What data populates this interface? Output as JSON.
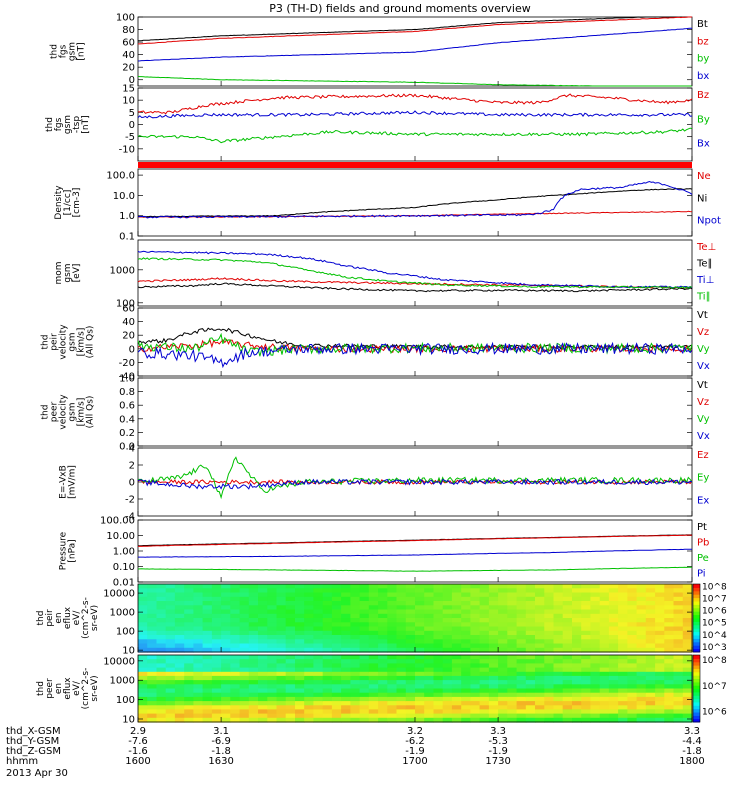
{
  "chart_data": {
    "type": "line",
    "title": "P3 (TH-D) fields and ground moments overview",
    "date_label": "2013 Apr 30",
    "x": {
      "ticks": [
        "1600",
        "1630",
        "1700",
        "1730",
        "1800"
      ],
      "range": [
        "1600",
        "1800"
      ]
    },
    "ephemeris": [
      {
        "label": "thd_X-GSM",
        "values": [
          "2.9",
          "3.1",
          "3.2",
          "3.3",
          "3.3"
        ]
      },
      {
        "label": "thd_Y-GSM",
        "values": [
          "-7.6",
          "-6.9",
          "-6.2",
          "-5.3",
          "-4.4"
        ]
      },
      {
        "label": "thd_Z-GSM",
        "values": [
          "-1.6",
          "-1.8",
          "-1.9",
          "-1.9",
          "-1.8"
        ]
      },
      {
        "label": "hhmm",
        "values": [
          "1600",
          "1630",
          "1700",
          "1730",
          "1800"
        ]
      }
    ],
    "panels": [
      {
        "ylabel": [
          "thd",
          "fgs",
          "gsm",
          "[nT]"
        ],
        "yscale": "linear",
        "ylim": [
          -10,
          100
        ],
        "ticks": [
          "0",
          "20",
          "40",
          "60",
          "80",
          "100"
        ],
        "legend": [
          "Bt",
          "bz",
          "by",
          "bx"
        ],
        "series": [
          {
            "name": "Bt",
            "color": "#000000",
            "noise": 0.3,
            "x": [
              1600,
              1630,
              1700,
              1730,
              1800
            ],
            "y": [
              62,
              70,
              80,
              91,
              103
            ]
          },
          {
            "name": "bz",
            "color": "#e00000",
            "noise": 0.3,
            "x": [
              1600,
              1630,
              1700,
              1730,
              1800
            ],
            "y": [
              57,
              66,
              77,
              88,
              100
            ]
          },
          {
            "name": "by",
            "color": "#0000d0",
            "noise": 0.3,
            "x": [
              1600,
              1630,
              1700,
              1730,
              1800
            ],
            "y": [
              30,
              36,
              44,
              59,
              82
            ]
          },
          {
            "name": "bx",
            "color": "#00c000",
            "noise": 0.3,
            "x": [
              1600,
              1630,
              1700,
              1730,
              1800
            ],
            "y": [
              5,
              0,
              -4,
              -8,
              -12
            ]
          }
        ]
      },
      {
        "ylabel": [
          "thd",
          "fgs",
          "gsm",
          "-tsp",
          "[nT]"
        ],
        "yscale": "linear",
        "ylim": [
          -15,
          15
        ],
        "ticks": [
          "-10",
          "-5",
          "0",
          "5",
          "10",
          "15"
        ],
        "legend": [
          "Bz",
          "By",
          "Bx"
        ],
        "series": [
          {
            "name": "Bz",
            "color": "#e00000",
            "noise": 0.6,
            "x": [
              1600,
              1612,
              1625,
              1650,
              1700,
              1730,
              1745,
              1755,
              1770,
              1790,
              1800
            ],
            "y": [
              5,
              5,
              8,
              11,
              12,
              9,
              9,
              12,
              11,
              9,
              10
            ]
          },
          {
            "name": "By",
            "color": "#0000d0",
            "noise": 0.6,
            "x": [
              1600,
              1625,
              1660,
              1700,
              1730,
              1760,
              1800
            ],
            "y": [
              3,
              4,
              4,
              5,
              4,
              4,
              4
            ]
          },
          {
            "name": "Bx",
            "color": "#00c000",
            "noise": 0.6,
            "x": [
              1600,
              1620,
              1630,
              1650,
              1670,
              1700,
              1720,
              1760,
              1790,
              1800
            ],
            "y": [
              -5,
              -5,
              -7,
              -5,
              -3,
              -4,
              -4,
              -4,
              -3,
              -2
            ]
          }
        ]
      },
      {
        "ylabel": [
          "Density",
          "[1/cc]",
          "[cm-3]"
        ],
        "yscale": "log",
        "ylim": [
          0.1,
          200
        ],
        "ticks": [
          "0.1",
          "1.0",
          "10.0",
          "100.0"
        ],
        "legend": [
          "Ne",
          "Ni",
          "Npot"
        ],
        "series": [
          {
            "name": "Ne",
            "color": "#e00000",
            "noise": 0.02,
            "x": [
              1600,
              1650,
              1700,
              1750,
              1800
            ],
            "y": [
              0.85,
              0.9,
              1.0,
              1.3,
              1.6
            ]
          },
          {
            "name": "Ni",
            "color": "#000000",
            "noise": 0.02,
            "x": [
              1600,
              1650,
              1700,
              1730,
              1760,
              1780,
              1790,
              1800
            ],
            "y": [
              0.9,
              1.0,
              2.5,
              6,
              12,
              18,
              20,
              21
            ]
          },
          {
            "name": "Npot",
            "color": "#0000d0",
            "noise": 0.05,
            "x": [
              1600,
              1650,
              1700,
              1740,
              1745,
              1750,
              1760,
              1775,
              1785,
              1790,
              1795,
              1800
            ],
            "y": [
              0.85,
              0.9,
              1.0,
              1.1,
              1.3,
              2,
              20,
              25,
              45,
              35,
              20,
              12
            ]
          }
        ]
      },
      {
        "ylabel": [
          "mom",
          "gsm",
          "[eV]"
        ],
        "yscale": "log",
        "ylim": [
          80,
          8000
        ],
        "ticks": [
          "100",
          "1000"
        ],
        "legend": [
          "Te⊥",
          "Te∥",
          "Ti⊥",
          "Ti∥"
        ],
        "series": [
          {
            "name": "Te⊥",
            "color": "#e00000",
            "noise": 0.03,
            "x": [
              1600,
              1620,
              1630,
              1650,
              1670,
              1700,
              1730,
              1760,
              1800
            ],
            "y": [
              450,
              500,
              550,
              460,
              420,
              380,
              350,
              320,
              280
            ]
          },
          {
            "name": "Te∥",
            "color": "#000000",
            "noise": 0.03,
            "x": [
              1600,
              1620,
              1630,
              1650,
              1670,
              1700,
              1730,
              1760,
              1800
            ],
            "y": [
              300,
              330,
              380,
              320,
              270,
              230,
              240,
              230,
              270
            ]
          },
          {
            "name": "Ti⊥",
            "color": "#0000d0",
            "noise": 0.03,
            "x": [
              1600,
              1615,
              1630,
              1645,
              1660,
              1675,
              1690,
              1710,
              1740,
              1770,
              1800
            ],
            "y": [
              3500,
              3400,
              3200,
              3000,
              2300,
              1300,
              800,
              500,
              360,
              310,
              300
            ]
          },
          {
            "name": "Ti∥",
            "color": "#00c000",
            "noise": 0.03,
            "x": [
              1600,
              1615,
              1630,
              1645,
              1660,
              1675,
              1690,
              1710,
              1740,
              1770,
              1800
            ],
            "y": [
              2200,
              2100,
              2000,
              1700,
              1000,
              600,
              450,
              350,
              310,
              300,
              290
            ]
          }
        ]
      },
      {
        "ylabel": [
          "thd",
          "peir",
          "velocity",
          "gsm",
          "[km/s]",
          "(All Qs)"
        ],
        "yscale": "linear",
        "ylim": [
          -40,
          60
        ],
        "ticks": [
          "-40",
          "-20",
          "0",
          "20",
          "40",
          "60"
        ],
        "legend": [
          "Vt",
          "Vz",
          "Vy",
          "Vx"
        ],
        "series": [
          {
            "name": "Vt",
            "color": "#000000",
            "noise": 3,
            "x": [
              1600,
              1610,
              1620,
              1630,
              1640,
              1650,
              1660,
              1700,
              1800
            ],
            "y": [
              10,
              12,
              25,
              30,
              20,
              10,
              5,
              3,
              3
            ]
          },
          {
            "name": "Vz",
            "color": "#e00000",
            "noise": 5,
            "x": [
              1600,
              1620,
              1630,
              1640,
              1660,
              1700,
              1800
            ],
            "y": [
              0,
              5,
              10,
              5,
              0,
              0,
              0
            ]
          },
          {
            "name": "Vy",
            "color": "#00c000",
            "noise": 7,
            "x": [
              1600,
              1620,
              1630,
              1640,
              1660,
              1700,
              1800
            ],
            "y": [
              5,
              0,
              15,
              -5,
              0,
              1,
              1
            ]
          },
          {
            "name": "Vx",
            "color": "#0000d0",
            "noise": 8,
            "x": [
              1600,
              1620,
              1630,
              1640,
              1660,
              1700,
              1800
            ],
            "y": [
              -5,
              -10,
              -20,
              -5,
              0,
              0,
              0
            ]
          }
        ]
      },
      {
        "ylabel": [
          "thd",
          "peer",
          "velocity",
          "gsm",
          "[km/s]",
          "(All Qs)"
        ],
        "yscale": "linear",
        "ylim": [
          0,
          1
        ],
        "ticks": [
          "0.0",
          "0.2",
          "0.4",
          "0.6",
          "0.8",
          "1.0"
        ],
        "legend": [
          "Vt",
          "Vz",
          "Vy",
          "Vx"
        ],
        "series": []
      },
      {
        "ylabel": [
          "E=-VxB",
          "[mV/m]"
        ],
        "yscale": "linear",
        "ylim": [
          -4,
          4
        ],
        "ticks": [
          "-4",
          "-2",
          "0",
          "2",
          "4"
        ],
        "legend": [
          "Ez",
          "Ey",
          "Ex"
        ],
        "series": [
          {
            "name": "Ez",
            "color": "#e00000",
            "noise": 0.25,
            "x": [
              1600,
              1700,
              1800
            ],
            "y": [
              0,
              0,
              0
            ]
          },
          {
            "name": "Ey",
            "color": "#00c000",
            "noise": 0.35,
            "x": [
              1600,
              1615,
              1625,
              1630,
              1635,
              1645,
              1660,
              1700,
              1800
            ],
            "y": [
              0,
              0.5,
              2,
              -2,
              3,
              -1,
              0,
              0.2,
              0.2
            ]
          },
          {
            "name": "Ex",
            "color": "#0000d0",
            "noise": 0.3,
            "x": [
              1600,
              1620,
              1640,
              1660,
              1700,
              1800
            ],
            "y": [
              0,
              -0.5,
              -0.5,
              0,
              0,
              0
            ]
          }
        ]
      },
      {
        "ylabel": [
          "Pressure",
          "[nPa]"
        ],
        "yscale": "log",
        "ylim": [
          0.01,
          100
        ],
        "ticks": [
          "0.01",
          "0.10",
          "1.00",
          "10.00",
          "100.00"
        ],
        "legend": [
          "Pt",
          "Pb",
          "Pe",
          "Pi"
        ],
        "series": [
          {
            "name": "Pt",
            "color": "#000000",
            "noise": 0.01,
            "x": [
              1600,
              1650,
              1700,
              1750,
              1800
            ],
            "y": [
              2.2,
              3.3,
              5.0,
              7.5,
              11
            ]
          },
          {
            "name": "Pb",
            "color": "#e00000",
            "noise": 0.01,
            "x": [
              1600,
              1650,
              1700,
              1750,
              1800
            ],
            "y": [
              2.0,
              3.1,
              4.7,
              7.2,
              10.5
            ]
          },
          {
            "name": "Pi",
            "color": "#0000d0",
            "noise": 0.01,
            "x": [
              1600,
              1650,
              1700,
              1750,
              1800
            ],
            "y": [
              0.4,
              0.45,
              0.55,
              0.8,
              1.3
            ]
          },
          {
            "name": "Pe",
            "color": "#00c000",
            "noise": 0.01,
            "x": [
              1600,
              1650,
              1700,
              1750,
              1800
            ],
            "y": [
              0.07,
              0.06,
              0.05,
              0.06,
              0.09
            ]
          }
        ]
      },
      {
        "ylabel": [
          "thd",
          "peir",
          "en",
          "eflux",
          "eV/",
          "(cm^2-s-",
          "sr-eV)"
        ],
        "yscale": "log",
        "ylim": [
          8,
          30000
        ],
        "ticks": [
          "10",
          "100",
          "1000",
          "10000"
        ],
        "type": "spectrogram",
        "colorbar": {
          "ticks": [
            "10^3",
            "10^4",
            "10^5",
            "10^6",
            "10^7",
            "10^8"
          ],
          "range": [
            3,
            8.3
          ]
        }
      },
      {
        "ylabel": [
          "thd",
          "peer",
          "en",
          "eflux",
          "eV/",
          "(cm^2-s-",
          "sr-eV)"
        ],
        "yscale": "log",
        "ylim": [
          7,
          20000
        ],
        "ticks": [
          "10",
          "100",
          "1000",
          "10000"
        ],
        "type": "spectrogram",
        "colorbar": {
          "ticks": [
            "10^6",
            "10^7",
            "10^8"
          ],
          "range": [
            5.6,
            8.2
          ]
        }
      }
    ]
  }
}
